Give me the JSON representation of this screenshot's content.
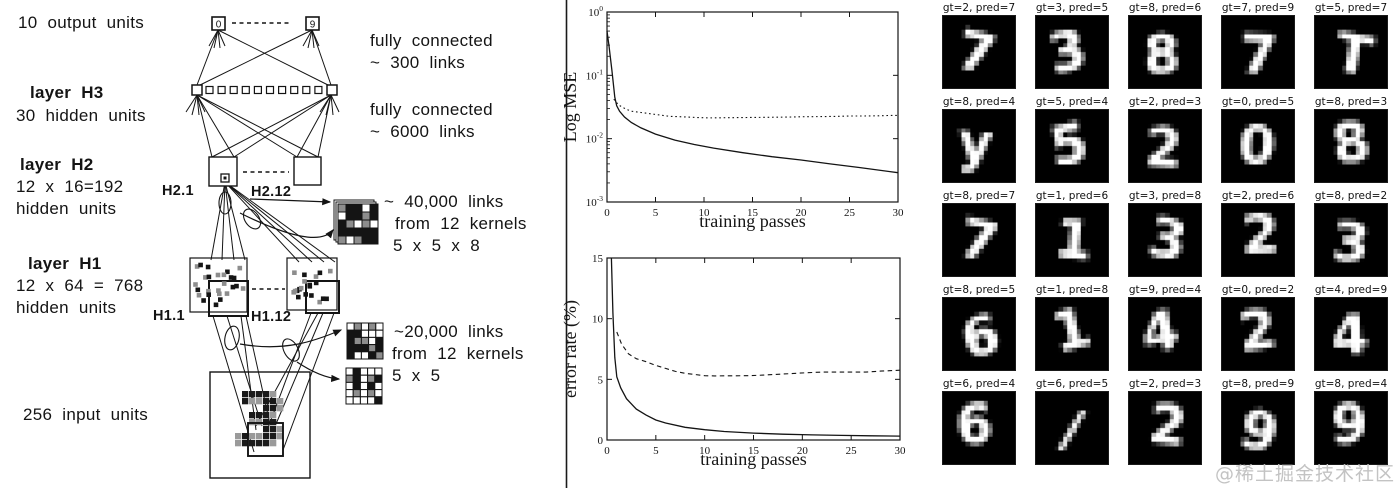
{
  "diagram": {
    "output_units_label": "10 output units",
    "output_node_left_digit": "0",
    "output_node_right_digit": "9",
    "h3": {
      "title": "layer H3",
      "subtitle": "30 hidden units"
    },
    "h2": {
      "title": "layer H2",
      "line2": "12 x 16=192",
      "line3": "hidden units",
      "unit_first": "H2.1",
      "unit_last": "H2.12"
    },
    "h1": {
      "title": "layer H1",
      "line2": "12 x 64 = 768",
      "line3": "hidden units",
      "unit_first": "H1.1",
      "unit_last": "H1.12"
    },
    "input_label": "256 input units",
    "fc1": {
      "line1": "fully connected",
      "line2": "~ 300 links"
    },
    "fc2": {
      "line1": "fully connected",
      "line2": "~ 6000 links"
    },
    "conv2": {
      "line1": "~ 40,000 links",
      "line2": "from 12 kernels",
      "line3": "5 x 5 x 8"
    },
    "conv1": {
      "line1": "~20,000 links",
      "line2": "from 12 kernels",
      "line3": "5 x 5"
    }
  },
  "chart_data": [
    {
      "type": "line",
      "title": "",
      "xlabel": "training passes",
      "ylabel": "Log MSE",
      "xlim": [
        0,
        30
      ],
      "xticks": [
        0,
        5,
        10,
        15,
        20,
        25,
        30
      ],
      "yscale": "log",
      "ylim": [
        0.001,
        1
      ],
      "yticks": [
        "10^0",
        "10^-1",
        "10^-2",
        "10^-3"
      ],
      "grid": false,
      "legend": "none",
      "series": [
        {
          "name": "solid",
          "style": "solid",
          "x": [
            0,
            0.2,
            0.5,
            0.8,
            1,
            1.3,
            1.8,
            2.5,
            3.5,
            5,
            7,
            9,
            11,
            14,
            17,
            20,
            23,
            26,
            30
          ],
          "y": [
            0.5,
            0.3,
            0.12,
            0.045,
            0.033,
            0.027,
            0.022,
            0.018,
            0.0148,
            0.0118,
            0.0095,
            0.0081,
            0.0071,
            0.006,
            0.0052,
            0.0046,
            0.004,
            0.0035,
            0.0029
          ]
        },
        {
          "name": "dotted",
          "style": "dotted",
          "x": [
            0.7,
            1.2,
            2,
            2.6,
            6.5,
            7.5,
            9.5,
            10.5,
            17.5,
            19,
            20.5,
            22,
            23.5,
            25,
            26.5,
            28,
            29,
            30
          ],
          "y": [
            0.042,
            0.034,
            0.029,
            0.027,
            0.0225,
            0.0222,
            0.0215,
            0.0213,
            0.0218,
            0.022,
            0.0222,
            0.0223,
            0.0225,
            0.0228,
            0.0228,
            0.023,
            0.0232,
            0.0233
          ]
        }
      ]
    },
    {
      "type": "line",
      "title": "",
      "xlabel": "training passes",
      "ylabel": "error rate (%)",
      "xlim": [
        0,
        30
      ],
      "xticks": [
        0,
        5,
        10,
        15,
        20,
        25,
        30
      ],
      "yscale": "linear",
      "ylim": [
        0,
        15
      ],
      "yticks": [
        0,
        5,
        10,
        15
      ],
      "grid": false,
      "legend": "none",
      "series": [
        {
          "name": "solid",
          "style": "solid",
          "x": [
            0.45,
            0.6,
            0.8,
            1,
            1.4,
            2,
            3,
            4,
            5,
            6,
            8,
            10,
            12,
            15,
            18,
            21,
            24,
            27,
            30
          ],
          "y": [
            15,
            10.5,
            6.8,
            5.2,
            4.3,
            3.4,
            2.55,
            2.05,
            1.65,
            1.4,
            1.05,
            0.85,
            0.7,
            0.57,
            0.48,
            0.42,
            0.38,
            0.35,
            0.32
          ]
        },
        {
          "name": "dashed",
          "style": "dashed",
          "x": [
            1,
            1.5,
            2.2,
            3,
            4,
            5,
            6,
            7,
            8,
            10,
            11,
            14.5,
            16,
            20.5,
            22,
            26.5,
            28,
            30
          ],
          "y": [
            8.9,
            7.9,
            7.1,
            6.7,
            6.45,
            6.15,
            5.9,
            5.65,
            5.5,
            5.3,
            5.28,
            5.3,
            5.35,
            5.55,
            5.6,
            5.6,
            5.68,
            5.75
          ]
        }
      ]
    }
  ],
  "digit_grid": {
    "cells": [
      {
        "label": "gt=2, pred=7",
        "gt": 2,
        "pred": 7,
        "glyph": "7"
      },
      {
        "label": "gt=3, pred=5",
        "gt": 3,
        "pred": 5,
        "glyph": "3"
      },
      {
        "label": "gt=8, pred=6",
        "gt": 8,
        "pred": 6,
        "glyph": "8"
      },
      {
        "label": "gt=7, pred=9",
        "gt": 7,
        "pred": 9,
        "glyph": "7"
      },
      {
        "label": "gt=5, pred=7",
        "gt": 5,
        "pred": 7,
        "glyph": "T"
      },
      {
        "label": "gt=8, pred=4",
        "gt": 8,
        "pred": 4,
        "glyph": "y"
      },
      {
        "label": "gt=5, pred=4",
        "gt": 5,
        "pred": 4,
        "glyph": "5"
      },
      {
        "label": "gt=2, pred=3",
        "gt": 2,
        "pred": 3,
        "glyph": "2"
      },
      {
        "label": "gt=0, pred=5",
        "gt": 0,
        "pred": 5,
        "glyph": "0"
      },
      {
        "label": "gt=8, pred=3",
        "gt": 8,
        "pred": 3,
        "glyph": "8"
      },
      {
        "label": "gt=8, pred=7",
        "gt": 8,
        "pred": 7,
        "glyph": "7"
      },
      {
        "label": "gt=1, pred=6",
        "gt": 1,
        "pred": 6,
        "glyph": "1"
      },
      {
        "label": "gt=3, pred=8",
        "gt": 3,
        "pred": 8,
        "glyph": "3"
      },
      {
        "label": "gt=2, pred=6",
        "gt": 2,
        "pred": 6,
        "glyph": "2"
      },
      {
        "label": "gt=8, pred=2",
        "gt": 8,
        "pred": 2,
        "glyph": "3"
      },
      {
        "label": "gt=8, pred=5",
        "gt": 8,
        "pred": 5,
        "glyph": "6"
      },
      {
        "label": "gt=1, pred=8",
        "gt": 1,
        "pred": 8,
        "glyph": "1"
      },
      {
        "label": "gt=9, pred=4",
        "gt": 9,
        "pred": 4,
        "glyph": "4"
      },
      {
        "label": "gt=0, pred=2",
        "gt": 0,
        "pred": 2,
        "glyph": "2"
      },
      {
        "label": "gt=4, pred=9",
        "gt": 4,
        "pred": 9,
        "glyph": "4"
      },
      {
        "label": "gt=6, pred=4",
        "gt": 6,
        "pred": 4,
        "glyph": "6"
      },
      {
        "label": "gt=6, pred=5",
        "gt": 6,
        "pred": 5,
        "glyph": "/"
      },
      {
        "label": "gt=2, pred=3",
        "gt": 2,
        "pred": 3,
        "glyph": "2"
      },
      {
        "label": "gt=8, pred=9",
        "gt": 8,
        "pred": 9,
        "glyph": "9"
      },
      {
        "label": "gt=8, pred=4",
        "gt": 8,
        "pred": 4,
        "glyph": "9"
      }
    ]
  },
  "watermark": "@稀土掘金技术社区",
  "colors": {
    "ink": "#141414",
    "paper": "#ffffff",
    "watermark": "#c3c3c3",
    "digit_bg": "#000000"
  }
}
